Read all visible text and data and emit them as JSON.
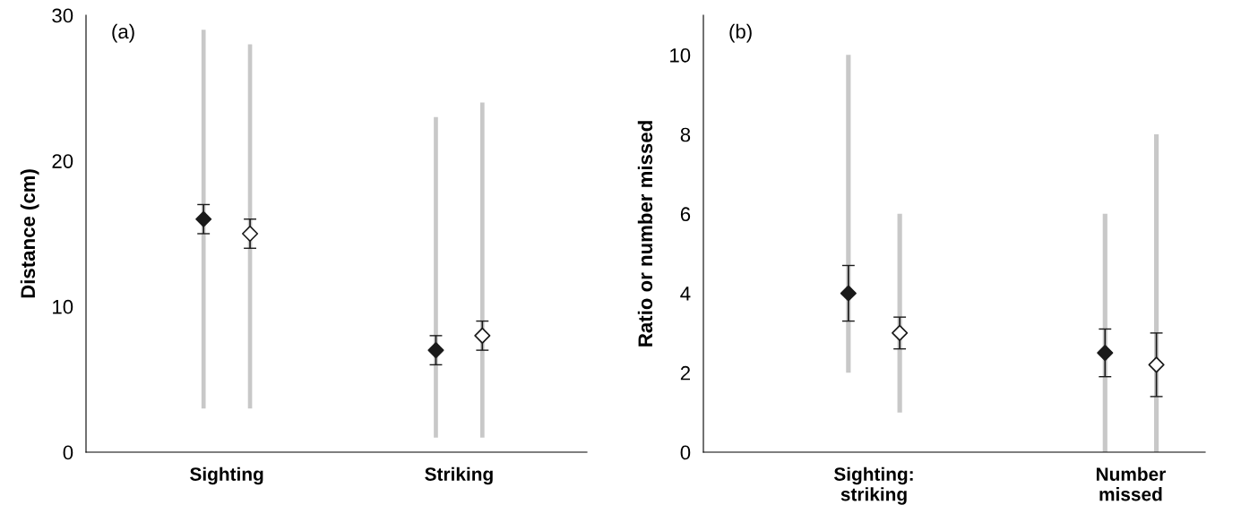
{
  "chart_data": [
    {
      "type": "scatter",
      "ylabel": "Distance (cm)",
      "categories": [
        "Sighting",
        "Striking"
      ],
      "ylim": [
        0,
        30
      ],
      "yticks": [
        0,
        10,
        20,
        30
      ],
      "marker": "diamond",
      "annotations": [
        "(a)"
      ],
      "series": [
        {
          "type": "bar",
          "color": "#c8c8c8",
          "base": [
            3,
            1
          ],
          "values": [
            26,
            22
          ]
        },
        {
          "type": "bar",
          "color": "#c8c8c8",
          "base": [
            3,
            1
          ],
          "values": [
            25,
            23
          ]
        },
        {
          "color": "#1a1a1a",
          "values": [
            16,
            7
          ],
          "errors": [
            [
              15,
              17
            ],
            [
              6,
              8
            ]
          ]
        },
        {
          "color": "#ffffff",
          "values": [
            15,
            8
          ],
          "errors": [
            [
              14,
              16
            ],
            [
              7,
              9
            ]
          ]
        }
      ]
    },
    {
      "type": "scatter",
      "ylabel": "Ratio or number missed",
      "categories": [
        "Sighting:\nstriking",
        "Number\nmissed"
      ],
      "ylim": [
        0,
        11
      ],
      "yticks": [
        0,
        2,
        4,
        6,
        8,
        10
      ],
      "marker": "diamond",
      "annotations": [
        "(b)"
      ],
      "series": [
        {
          "type": "bar",
          "color": "#c8c8c8",
          "base": [
            2,
            0
          ],
          "values": [
            8,
            6
          ]
        },
        {
          "type": "bar",
          "color": "#c8c8c8",
          "base": [
            1,
            0
          ],
          "values": [
            5,
            8
          ]
        },
        {
          "color": "#1a1a1a",
          "values": [
            4,
            2.5
          ],
          "errors": [
            [
              3.3,
              4.7
            ],
            [
              1.9,
              3.1
            ]
          ]
        },
        {
          "color": "#ffffff",
          "values": [
            3,
            2.2
          ],
          "errors": [
            [
              2.6,
              3.4
            ],
            [
              1.4,
              3.0
            ]
          ]
        }
      ]
    }
  ]
}
